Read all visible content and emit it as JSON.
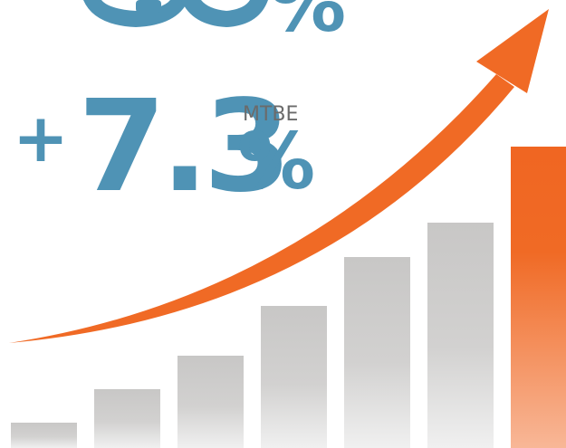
{
  "top_stat": {
    "unit": "%"
  },
  "main_stat": {
    "sign": "+",
    "value": 7.3,
    "unit": "%",
    "label": "MTBE"
  }
}
